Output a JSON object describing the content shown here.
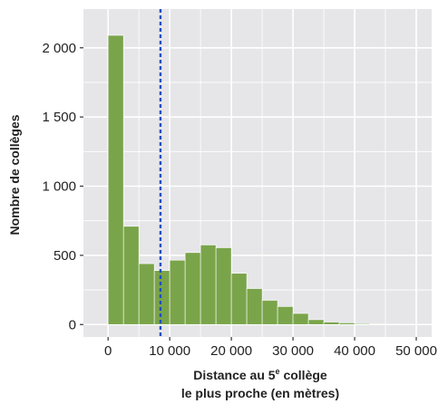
{
  "chart_data": {
    "type": "bar",
    "subtype": "histogram",
    "bin_width": 2500,
    "bins": [
      {
        "x0": 0,
        "x1": 2500,
        "count": 2090
      },
      {
        "x0": 2500,
        "x1": 5000,
        "count": 710
      },
      {
        "x0": 5000,
        "x1": 7500,
        "count": 440
      },
      {
        "x0": 7500,
        "x1": 10000,
        "count": 390
      },
      {
        "x0": 10000,
        "x1": 12500,
        "count": 465
      },
      {
        "x0": 12500,
        "x1": 15000,
        "count": 520
      },
      {
        "x0": 15000,
        "x1": 17500,
        "count": 575
      },
      {
        "x0": 17500,
        "x1": 20000,
        "count": 555
      },
      {
        "x0": 20000,
        "x1": 22500,
        "count": 370
      },
      {
        "x0": 22500,
        "x1": 25000,
        "count": 260
      },
      {
        "x0": 25000,
        "x1": 27500,
        "count": 175
      },
      {
        "x0": 27500,
        "x1": 30000,
        "count": 130
      },
      {
        "x0": 30000,
        "x1": 32500,
        "count": 80
      },
      {
        "x0": 32500,
        "x1": 35000,
        "count": 35
      },
      {
        "x0": 35000,
        "x1": 37500,
        "count": 18
      },
      {
        "x0": 37500,
        "x1": 40000,
        "count": 12
      },
      {
        "x0": 40000,
        "x1": 42500,
        "count": 6
      },
      {
        "x0": 42500,
        "x1": 45000,
        "count": 4
      },
      {
        "x0": 45000,
        "x1": 47500,
        "count": 3
      },
      {
        "x0": 47500,
        "x1": 50000,
        "count": 2
      }
    ],
    "reference_line": {
      "x": 8500,
      "style": "dashed",
      "color": "#1f4fc4"
    },
    "xlim": [
      -4000,
      52500
    ],
    "ylim": [
      -90,
      2280
    ],
    "x_ticks": [
      0,
      10000,
      20000,
      30000,
      40000,
      50000
    ],
    "x_tick_labels": [
      "0",
      "10 000",
      "20 000",
      "30 000",
      "40 000",
      "50 000"
    ],
    "y_ticks": [
      0,
      500,
      1000,
      1500,
      2000
    ],
    "y_tick_labels": [
      "0",
      "500",
      "1 000",
      "1 500",
      "2 000"
    ],
    "xlabel_line1_pre": "Distance au 5",
    "xlabel_line1_sup": "e",
    "xlabel_line1_post": " collège",
    "xlabel_line2": "le plus proche (en mètres)",
    "ylabel": "Nombre de collèges",
    "grid": true,
    "colors": {
      "bar_fill": "#7aa44a",
      "bar_stroke": "#ffffff",
      "panel_bg": "#e6e6e9",
      "grid": "#ffffff"
    }
  }
}
